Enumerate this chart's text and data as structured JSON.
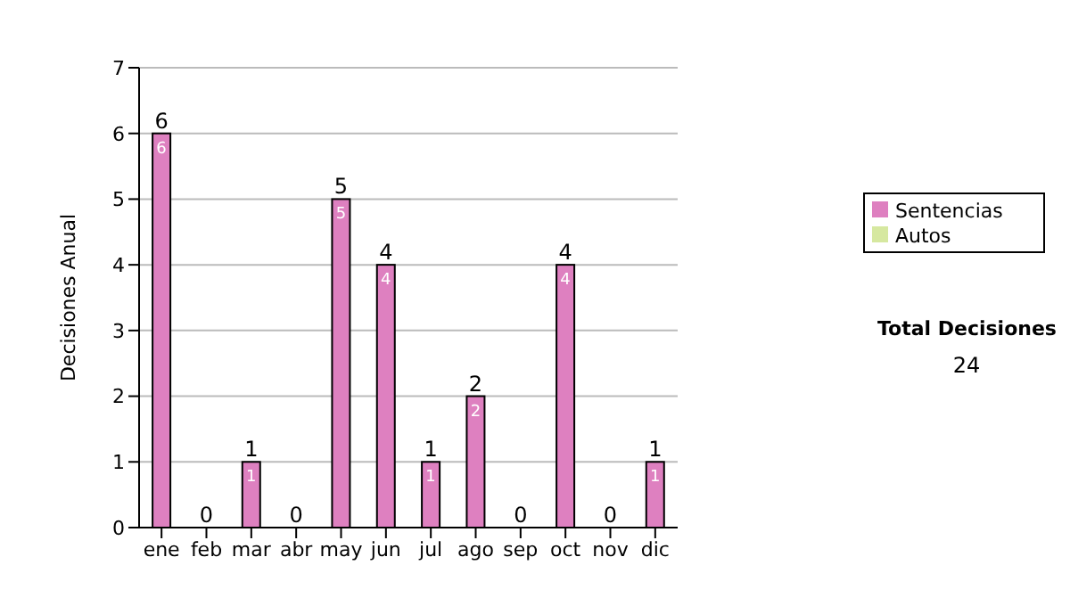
{
  "chart_data": {
    "type": "bar",
    "stacked": true,
    "categories": [
      "ene",
      "feb",
      "mar",
      "abr",
      "may",
      "jun",
      "jul",
      "ago",
      "sep",
      "oct",
      "nov",
      "dic"
    ],
    "ylabel": "Decisiones Anual",
    "series": [
      {
        "name": "Sentencias",
        "color": "#de80c0",
        "values": [
          6,
          0,
          1,
          0,
          5,
          4,
          1,
          2,
          0,
          4,
          0,
          1
        ],
        "value_labels": [
          "6",
          null,
          "1",
          null,
          "5",
          "4",
          "1",
          "2",
          null,
          "4",
          null,
          "1"
        ]
      },
      {
        "name": "Autos",
        "color": "#d6e8a0",
        "values": [
          0,
          0,
          0,
          0,
          0,
          0,
          0,
          0,
          0,
          0,
          0,
          0
        ]
      }
    ],
    "totals": [
      "6",
      "0",
      "1",
      "0",
      "5",
      "4",
      "1",
      "2",
      "0",
      "4",
      "0",
      "1"
    ],
    "ylim": [
      0,
      7
    ],
    "yticks": [
      0,
      1,
      2,
      3,
      4,
      5,
      6,
      7
    ],
    "grid": "y",
    "legend": "right",
    "annotations": [
      "Total Decisiones",
      "24"
    ]
  }
}
